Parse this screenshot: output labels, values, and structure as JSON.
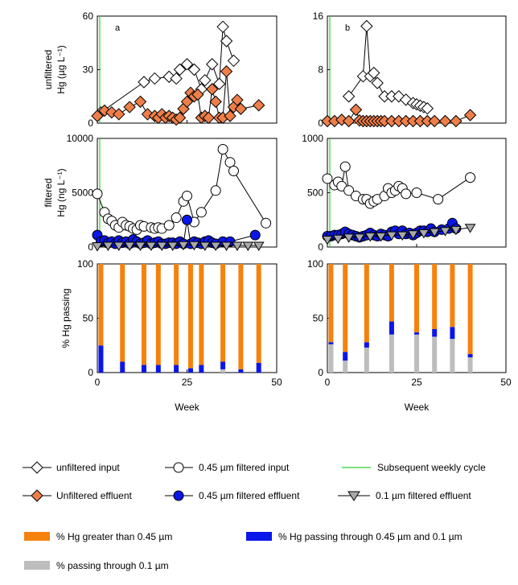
{
  "chart_data": [
    {
      "type": "line",
      "panel": "a",
      "label": "a",
      "ylabel_lines": [
        "unfiltered",
        "Hg (µg L⁻¹)"
      ],
      "xlim": [
        0,
        50
      ],
      "ylim": [
        0,
        60
      ],
      "yticks": [
        "0",
        "30",
        "60"
      ],
      "series": [
        {
          "name": "unfiltered input",
          "marker": "diamond-open",
          "x": [
            1,
            13,
            16,
            20,
            22,
            23,
            25,
            27,
            29,
            30,
            32,
            34,
            35,
            36,
            38
          ],
          "y": [
            6,
            23,
            25,
            26,
            25,
            30,
            33,
            30,
            19,
            24,
            33,
            22,
            54,
            46,
            35
          ]
        },
        {
          "name": "Unfiltered effluent",
          "marker": "diamond-filled",
          "x": [
            0,
            2,
            4,
            6,
            9,
            12,
            14,
            16,
            17,
            18,
            19,
            20,
            21,
            22,
            23,
            24,
            25,
            26,
            27,
            28,
            29,
            30,
            31,
            32,
            33,
            34,
            35,
            36,
            37,
            38,
            39,
            40,
            45
          ],
          "y": [
            4,
            7,
            6,
            5,
            9,
            12,
            5,
            4,
            3,
            5,
            3,
            4,
            3,
            2,
            3,
            8,
            12,
            17,
            15,
            16,
            3,
            4,
            3,
            19,
            12,
            3,
            3,
            29,
            4,
            9,
            13,
            8,
            10
          ]
        }
      ]
    },
    {
      "type": "line",
      "panel": "b",
      "label": "b",
      "ylabel_lines": [],
      "xlim": [
        0,
        50
      ],
      "ylim": [
        0,
        16
      ],
      "yticks": [
        "0",
        "8",
        "16"
      ],
      "series": [
        {
          "name": "unfiltered input",
          "marker": "diamond-open",
          "x": [
            6,
            10,
            11,
            12,
            13,
            14,
            16,
            18,
            20,
            22,
            24,
            25,
            26,
            27,
            28
          ],
          "y": [
            4,
            7,
            14.5,
            7,
            7.5,
            6,
            4,
            4,
            4,
            3.5,
            3,
            2.8,
            2.6,
            2.4,
            2.2
          ]
        },
        {
          "name": "Unfiltered effluent",
          "marker": "diamond-filled",
          "x": [
            0,
            2,
            4,
            6,
            8,
            9,
            10,
            11,
            12,
            13,
            14,
            15,
            16,
            18,
            20,
            22,
            24,
            26,
            28,
            30,
            33,
            36,
            40
          ],
          "y": [
            0.3,
            0.3,
            0.5,
            0.3,
            2,
            0.4,
            0.3,
            0.3,
            0.3,
            0.3,
            0.3,
            0.3,
            0.3,
            0.3,
            0.3,
            0.3,
            0.3,
            0.3,
            0.3,
            0.3,
            0.3,
            0.3,
            1.2
          ]
        }
      ]
    },
    {
      "type": "line",
      "panel": "c",
      "label": "",
      "ylabel_lines": [
        "filtered",
        "Hg (ng L⁻¹)"
      ],
      "xlim": [
        0,
        50
      ],
      "ylim": [
        0,
        10000
      ],
      "yticks": [
        "0",
        "5000",
        "10000"
      ],
      "series": [
        {
          "name": "0.45 µm filtered input",
          "marker": "circle-open",
          "x": [
            0,
            2,
            3,
            4,
            5,
            6,
            7,
            8,
            9,
            10,
            11,
            12,
            13,
            15,
            16,
            17,
            18,
            20,
            22,
            24,
            25,
            27,
            29,
            33,
            35,
            37,
            38,
            47
          ],
          "y": [
            4900,
            3200,
            2600,
            2400,
            2000,
            1800,
            2300,
            2000,
            1900,
            1700,
            1600,
            2000,
            1900,
            1800,
            1700,
            1800,
            1700,
            2000,
            2700,
            4200,
            4700,
            2300,
            3200,
            5200,
            9000,
            7800,
            7000,
            2200
          ]
        },
        {
          "name": "0.45 µm filtered effluent",
          "marker": "circle-filled",
          "x": [
            0,
            1,
            2,
            3,
            4,
            5,
            6,
            7,
            8,
            9,
            10,
            11,
            12,
            13,
            14,
            15,
            16,
            17,
            18,
            19,
            20,
            21,
            22,
            23,
            24,
            25,
            26,
            27,
            28,
            29,
            30,
            31,
            32,
            33,
            35,
            37,
            44
          ],
          "y": [
            1100,
            500,
            600,
            350,
            500,
            300,
            600,
            400,
            500,
            300,
            700,
            500,
            300,
            400,
            600,
            300,
            400,
            500,
            300,
            300,
            400,
            400,
            300,
            500,
            300,
            2500,
            300,
            500,
            400,
            300,
            500,
            600,
            400,
            300,
            500,
            500,
            1100
          ]
        },
        {
          "name": "0.1 µm filtered effluent",
          "marker": "triangle-down-gray",
          "x": [
            0,
            3,
            6,
            9,
            12,
            15,
            18,
            21,
            24,
            27,
            30,
            33,
            36,
            39,
            42,
            45
          ],
          "y": [
            100,
            150,
            150,
            150,
            150,
            150,
            150,
            150,
            200,
            200,
            150,
            150,
            150,
            150,
            150,
            150
          ]
        }
      ]
    },
    {
      "type": "line",
      "panel": "d",
      "label": "",
      "ylabel_lines": [],
      "xlim": [
        0,
        50
      ],
      "ylim": [
        0,
        1000
      ],
      "yticks": [
        "0",
        "500",
        "1000"
      ],
      "series": [
        {
          "name": "0.45 µm filtered input",
          "marker": "circle-open",
          "x": [
            0,
            2,
            3,
            4,
            5,
            6,
            8,
            10,
            11,
            12,
            13,
            14,
            16,
            17,
            18,
            19,
            20,
            21,
            22,
            25,
            31,
            40
          ],
          "y": [
            630,
            570,
            600,
            560,
            740,
            520,
            470,
            440,
            440,
            400,
            420,
            440,
            470,
            540,
            500,
            520,
            560,
            540,
            490,
            500,
            440,
            640
          ]
        },
        {
          "name": "0.45 µm filtered effluent",
          "marker": "circle-filled",
          "x": [
            0,
            1,
            2,
            3,
            4,
            5,
            6,
            7,
            8,
            9,
            10,
            11,
            12,
            13,
            14,
            15,
            16,
            17,
            18,
            19,
            20,
            21,
            22,
            23,
            24,
            25,
            26,
            27,
            28,
            29,
            30,
            32,
            34,
            35,
            36
          ],
          "y": [
            100,
            100,
            110,
            110,
            120,
            140,
            120,
            110,
            100,
            90,
            100,
            110,
            130,
            110,
            100,
            120,
            110,
            100,
            140,
            150,
            120,
            150,
            120,
            130,
            110,
            130,
            150,
            150,
            140,
            170,
            140,
            160,
            170,
            220,
            170
          ]
        },
        {
          "name": "0.1 µm filtered effluent",
          "marker": "triangle-down-gray",
          "x": [
            0,
            3,
            6,
            9,
            12,
            15,
            18,
            21,
            24,
            27,
            30,
            33,
            36,
            40
          ],
          "y": [
            70,
            80,
            90,
            90,
            100,
            100,
            110,
            110,
            120,
            130,
            140,
            150,
            160,
            180
          ]
        }
      ]
    },
    {
      "type": "bar",
      "stacked": true,
      "panel": "e",
      "ylabel_lines": [
        "% Hg passing"
      ],
      "xlabel": "Week",
      "xlim": [
        0,
        50
      ],
      "ylim": [
        0,
        100
      ],
      "xticks": [
        "0",
        "25",
        "50"
      ],
      "yticks": [
        "0",
        "50",
        "100"
      ],
      "x": [
        1,
        7,
        13,
        17,
        22,
        26,
        29,
        35,
        40,
        45
      ],
      "series": [
        {
          "name": "% passing through 0.1 µm",
          "values": [
            0,
            0,
            0,
            0,
            0,
            0,
            0,
            3,
            0,
            0
          ]
        },
        {
          "name": "% Hg passing through 0.45 µm and 0.1 µm",
          "values": [
            25,
            10,
            7,
            7,
            7,
            4,
            7,
            7,
            3,
            9
          ]
        },
        {
          "name": "% Hg greater than 0.45 µm",
          "values": [
            75,
            90,
            93,
            93,
            93,
            96,
            93,
            90,
            97,
            91
          ]
        }
      ]
    },
    {
      "type": "bar",
      "stacked": true,
      "panel": "f",
      "ylabel_lines": [],
      "xlabel": "Week",
      "xlim": [
        0,
        50
      ],
      "ylim": [
        0,
        100
      ],
      "xticks": [
        "0",
        "25",
        "50"
      ],
      "yticks": [
        "0",
        "50",
        "100"
      ],
      "x": [
        1,
        5,
        11,
        18,
        25,
        30,
        35,
        40
      ],
      "series": [
        {
          "name": "% passing through 0.1 µm",
          "values": [
            26,
            11,
            23,
            35,
            35,
            33,
            31,
            14
          ]
        },
        {
          "name": "% Hg passing through 0.45 µm and 0.1 µm",
          "values": [
            2,
            8,
            5,
            12,
            2,
            7,
            11,
            3
          ]
        },
        {
          "name": "% Hg greater than 0.45 µm",
          "values": [
            72,
            81,
            72,
            53,
            63,
            60,
            58,
            83
          ]
        }
      ]
    }
  ],
  "colors": {
    "orange": "#f5820d",
    "diamond_orange": "#ee7f4a",
    "blue": "#0a17e8",
    "gray": "#bdbdbd",
    "green": "#2fd12f",
    "triangle": "#a9a9a9"
  },
  "legend": {
    "unfiltered_input": "unfiltered input",
    "filtered_input": "0.45 µm filtered input",
    "weekly_cycle": "Subsequent weekly cycle",
    "unfiltered_effluent": "Unfiltered effluent",
    "filtered_effluent_045": "0.45 µm filtered  effluent",
    "filtered_effluent_01": "0.1 µm filtered effluent",
    "bar_greater": "% Hg greater than 0.45 µm",
    "bar_between": "% Hg passing through 0.45 µm and 0.1 µm",
    "bar_passing": "% passing through 0.1 µm"
  }
}
